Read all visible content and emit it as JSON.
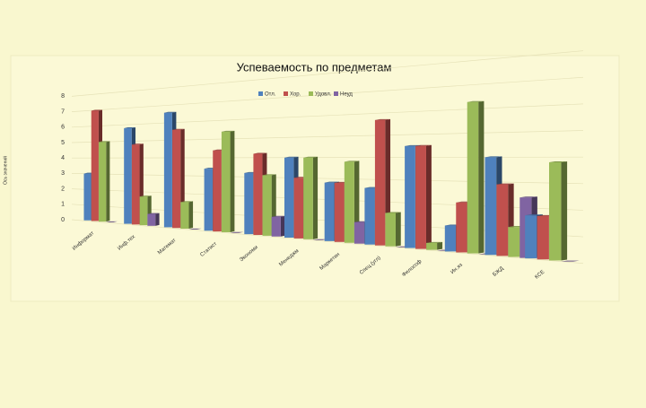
{
  "chart_data": {
    "type": "bar3d",
    "title": "Успеваемость по предметам",
    "y_label": "Ось значений",
    "categories": [
      "Информат",
      "Инф.тех",
      "Математ",
      "Статист",
      "Экономи",
      "Менеджм",
      "Маркетин",
      "Спец.(угл)",
      "Философ",
      "Ин.яз",
      "БЖД",
      "КСЕ"
    ],
    "series": [
      {
        "name": "Отл.",
        "color": "#4f81bd",
        "values": [
          3,
          5.8,
          6.6,
          3.4,
          3.2,
          4,
          2.8,
          2.6,
          4.5,
          1.1,
          4,
          1.7
        ]
      },
      {
        "name": "Хор.",
        "color": "#c0504d",
        "values": [
          7,
          4.8,
          5.6,
          4.4,
          4.2,
          3,
          2.8,
          5.7,
          4.5,
          2.1,
          2.9,
          1.7
        ]
      },
      {
        "name": "Удовл.",
        "color": "#9bbb59",
        "values": [
          5,
          1.7,
          1.5,
          5.4,
          3.1,
          4,
          3.8,
          1.5,
          0.3,
          6.3,
          1.2,
          3.8
        ]
      },
      {
        "name": "Неуд",
        "color": "#8064a2",
        "values": [
          0,
          0.7,
          0,
          0,
          1,
          0,
          1,
          0,
          0,
          0,
          2.4,
          0
        ]
      }
    ],
    "ylim": [
      0,
      8
    ],
    "yticks": [
      0,
      1,
      2,
      3,
      4,
      5,
      6,
      7,
      8
    ],
    "grid": true,
    "legend": "top"
  }
}
